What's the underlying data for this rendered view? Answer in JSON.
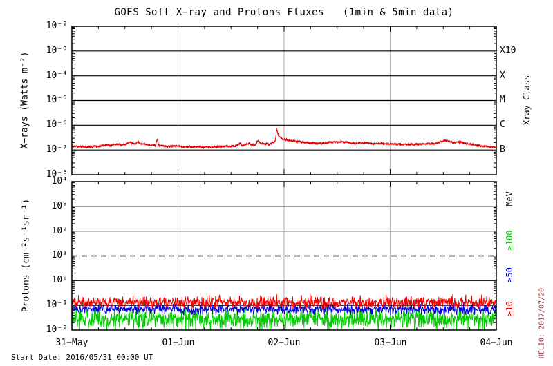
{
  "title": "GOES Soft X−ray and Protons Fluxes   (1min & 5min data)",
  "footer": {
    "start_date": "Start Date: 2016/05/31 00:00 UT"
  },
  "watermark": "HELIO: 2017/07/20",
  "colors": {
    "xray_trace": "#dd0000",
    "proton_ge10": "#ee0000",
    "proton_ge50": "#0000dd",
    "proton_ge100": "#00cc00",
    "day_gridline": "#b8b8b8",
    "axis": "#000000",
    "watermark_text": "#993333"
  },
  "xray_panel": {
    "ylabel": "X−rays (Watts m⁻²)",
    "yticks": [
      "10⁻²",
      "10⁻³",
      "10⁻⁴",
      "10⁻⁵",
      "10⁻⁶",
      "10⁻⁷",
      "10⁻⁸"
    ],
    "right_axis_label": "Xray Class",
    "class_ticks": [
      "X10",
      "X",
      "M",
      "C",
      "B"
    ]
  },
  "proton_panel": {
    "ylabel": "Protons (cm⁻²s⁻¹sr⁻¹)",
    "yticks": [
      "10⁴",
      "10³",
      "10²",
      "10¹",
      "10⁰",
      "10⁻¹",
      "10⁻²"
    ],
    "right_axis_label": "MeV",
    "series_ticks": [
      "≥100",
      "≥50",
      "≥10"
    ]
  },
  "x_axis": {
    "labels": [
      "31−May",
      "01−Jun",
      "02−Jun",
      "03−Jun",
      "04−Jun"
    ]
  },
  "chart_data": [
    {
      "id": "goes-soft-xray",
      "type": "line",
      "title": "GOES Soft X-ray flux",
      "x_unit": "hours since 2016/05/31 00:00 UT",
      "x_range": [
        0,
        96
      ],
      "x_tick_labels": [
        "31-May",
        "01-Jun",
        "02-Jun",
        "03-Jun",
        "04-Jun"
      ],
      "y_scale": "log",
      "ylim": [
        1e-08,
        0.01
      ],
      "ylabel": "X-rays (Watts m-2)",
      "grid": {
        "horizontal": "solid line per decade",
        "vertical": "gray line per day",
        "legend": "none"
      },
      "right_axis_ticks": [
        {
          "label": "X10",
          "value": 0.001
        },
        {
          "label": "X",
          "value": 0.0001
        },
        {
          "label": "M",
          "value": 1e-05
        },
        {
          "label": "C",
          "value": 1e-06
        },
        {
          "label": "B",
          "value": 1e-07
        }
      ],
      "series": [
        {
          "name": "X-ray flux",
          "color": "#dd0000",
          "noise_log_sigma": 0.025,
          "peak": {
            "time_hours": 46.3,
            "value": 7.5e-07
          },
          "envelope_points": [
            [
              0,
              1.4e-07
            ],
            [
              3,
              1.3e-07
            ],
            [
              6,
              1.4e-07
            ],
            [
              8,
              1.6e-07
            ],
            [
              9,
              1.5e-07
            ],
            [
              10,
              1.8e-07
            ],
            [
              11,
              1.6e-07
            ],
            [
              12,
              1.7e-07
            ],
            [
              13,
              2e-07
            ],
            [
              14,
              1.8e-07
            ],
            [
              15,
              2.1e-07
            ],
            [
              15.5,
              1.8e-07
            ],
            [
              17,
              1.6e-07
            ],
            [
              19,
              1.5e-07
            ],
            [
              19.3,
              2.9e-07
            ],
            [
              19.6,
              1.55e-07
            ],
            [
              21,
              1.4e-07
            ],
            [
              23,
              1.45e-07
            ],
            [
              25,
              1.35e-07
            ],
            [
              27,
              1.3e-07
            ],
            [
              29,
              1.35e-07
            ],
            [
              31,
              1.3e-07
            ],
            [
              33,
              1.35e-07
            ],
            [
              35,
              1.4e-07
            ],
            [
              37,
              1.45e-07
            ],
            [
              38.2,
              1.9e-07
            ],
            [
              38.5,
              1.5e-07
            ],
            [
              39,
              1.55e-07
            ],
            [
              40.1,
              1.9e-07
            ],
            [
              40.4,
              1.6e-07
            ],
            [
              41.5,
              1.6e-07
            ],
            [
              42.1,
              2.4e-07
            ],
            [
              42.6,
              1.9e-07
            ],
            [
              43.5,
              1.75e-07
            ],
            [
              44.5,
              1.7e-07
            ],
            [
              45.3,
              1.8e-07
            ],
            [
              46.0,
              2.2e-07
            ],
            [
              46.15,
              3.5e-07
            ],
            [
              46.3,
              7.5e-07
            ],
            [
              46.45,
              6e-07
            ],
            [
              46.7,
              4.2e-07
            ],
            [
              47.2,
              3.1e-07
            ],
            [
              48,
              2.6e-07
            ],
            [
              50,
              2.3e-07
            ],
            [
              52,
              2.1e-07
            ],
            [
              54,
              1.9e-07
            ],
            [
              56,
              1.85e-07
            ],
            [
              58,
              1.95e-07
            ],
            [
              60,
              2.1e-07
            ],
            [
              62,
              2.05e-07
            ],
            [
              64,
              1.85e-07
            ],
            [
              66,
              1.95e-07
            ],
            [
              68,
              1.8e-07
            ],
            [
              70,
              1.85e-07
            ],
            [
              72,
              1.75e-07
            ],
            [
              74,
              1.7e-07
            ],
            [
              76,
              1.65e-07
            ],
            [
              78,
              1.7e-07
            ],
            [
              80,
              1.75e-07
            ],
            [
              82,
              1.8e-07
            ],
            [
              83.5,
              2.2e-07
            ],
            [
              84.5,
              2.45e-07
            ],
            [
              85.5,
              2.1e-07
            ],
            [
              86.5,
              1.95e-07
            ],
            [
              87.5,
              2.2e-07
            ],
            [
              88.5,
              1.95e-07
            ],
            [
              90,
              1.7e-07
            ],
            [
              92,
              1.5e-07
            ],
            [
              94,
              1.35e-07
            ],
            [
              96,
              1.3e-07
            ]
          ]
        }
      ]
    },
    {
      "id": "goes-protons",
      "type": "line",
      "title": "GOES Proton fluxes",
      "x_unit": "hours since 2016/05/31 00:00 UT",
      "x_range": [
        0,
        96
      ],
      "y_scale": "log",
      "ylim": [
        0.01,
        10000.0
      ],
      "ylabel": "Protons (cm-2 s-1 sr-1)",
      "reference_line": {
        "value": 10,
        "style": "dashed"
      },
      "grid": {
        "horizontal": "solid line per decade (dashed at 10^1)",
        "vertical": "gray line per day",
        "legend": "right-axis colored labels"
      },
      "series": [
        {
          "name": "≥100 MeV",
          "color": "#00cc00",
          "baseline": 0.028,
          "noise_log_sigma": 0.2,
          "clip_min": 0.01,
          "clip_max": 0.085
        },
        {
          "name": "≥50 MeV",
          "color": "#0000dd",
          "baseline": 0.07,
          "noise_log_sigma": 0.1,
          "clip_min": 0.042,
          "clip_max": 0.16
        },
        {
          "name": "≥10 MeV",
          "color": "#ee0000",
          "baseline": 0.13,
          "noise_log_sigma": 0.12,
          "clip_min": 0.075,
          "clip_max": 0.38
        }
      ]
    }
  ]
}
